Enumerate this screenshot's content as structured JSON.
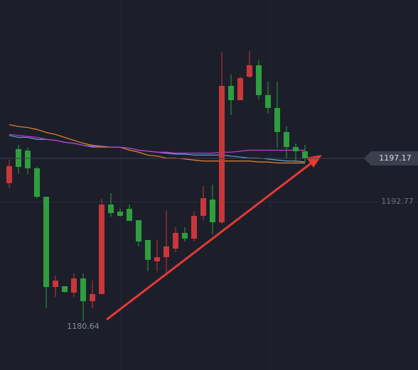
{
  "chart_data": {
    "type": "candlestick",
    "open": [
      1194.65,
      1198.11,
      1197.96,
      1196.16,
      1193.27,
      1184.11,
      1184.19,
      1183.54,
      1184.98,
      1182.67,
      1183.39,
      1192.48,
      1191.76,
      1192.05,
      1190.89,
      1188.88,
      1186.71,
      1187.14,
      1188.01,
      1189.6,
      1189.02,
      1191.33,
      1192.99,
      1190.68,
      1204.53,
      1203.08,
      1205.46,
      1206.62,
      1203.59,
      1202.29,
      1199.84,
      1198.32,
      1197.89
    ],
    "high": [
      1197.03,
      1198.54,
      1198.25,
      1196.3,
      1193.27,
      1185.27,
      1184.19,
      1185.49,
      1185.49,
      1184.76,
      1193.06,
      1193.64,
      1192.05,
      1192.48,
      1190.89,
      1188.88,
      1188.88,
      1191.9,
      1190.17,
      1190.17,
      1191.76,
      1194.36,
      1194.5,
      1207.99,
      1205.68,
      1205.46,
      1208.06,
      1207.12,
      1204.96,
      1204.96,
      1200.42,
      1198.68,
      1198.54
    ],
    "low": [
      1194.14,
      1195.58,
      1195.58,
      1193.13,
      1181.95,
      1183.1,
      1183.54,
      1183.1,
      1180.64,
      1181.95,
      1183.39,
      1191.26,
      1191.26,
      1190.82,
      1188.23,
      1185.7,
      1185.7,
      1185.27,
      1187.65,
      1188.73,
      1188.73,
      1190.89,
      1189.45,
      1190.53,
      1201.57,
      1203.08,
      1205.32,
      1203.16,
      1201.71,
      1198.25,
      1197.17,
      1196.81,
      1196.81
    ],
    "close": [
      1196.38,
      1196.3,
      1196.16,
      1193.27,
      1184.11,
      1184.76,
      1183.61,
      1184.98,
      1182.67,
      1183.39,
      1192.48,
      1191.62,
      1191.33,
      1190.82,
      1188.73,
      1186.86,
      1187.14,
      1188.23,
      1189.6,
      1189.02,
      1191.33,
      1193.13,
      1190.68,
      1204.53,
      1203.08,
      1205.32,
      1206.62,
      1203.59,
      1202.29,
      1199.84,
      1198.32,
      1197.89,
      1197.17
    ],
    "up_color": "#c9373a",
    "down_color": "#2f9e3f",
    "moving_averages": [
      {
        "color": "#e8872a",
        "values": [
          1200.6,
          1200.4,
          1200.3,
          1200.1,
          1199.8,
          1199.6,
          1199.3,
          1199.0,
          1198.7,
          1198.5,
          1198.4,
          1198.3,
          1198.3,
          1198.0,
          1197.8,
          1197.5,
          1197.4,
          1197.2,
          1197.2,
          1197.1,
          1197.0,
          1196.9,
          1196.9,
          1196.9,
          1196.9,
          1196.9,
          1196.9,
          1196.8,
          1196.8,
          1196.7,
          1196.7,
          1196.7,
          1196.7
        ]
      },
      {
        "color": "#5ba8e0",
        "values": [
          1199.5,
          1199.3,
          1199.3,
          1199.1,
          1199.1,
          1199.0,
          1198.8,
          1198.7,
          1198.5,
          1198.4,
          1198.3,
          1198.3,
          1198.3,
          1198.2,
          1198.0,
          1197.9,
          1197.8,
          1197.7,
          1197.6,
          1197.6,
          1197.5,
          1197.5,
          1197.5,
          1197.5,
          1197.4,
          1197.3,
          1197.2,
          1197.2,
          1197.1,
          1197.0,
          1196.9,
          1196.9,
          1196.8
        ]
      },
      {
        "color": "#c23ad6",
        "values": [
          1199.6,
          1199.5,
          1199.4,
          1199.3,
          1199.1,
          1199.0,
          1198.8,
          1198.7,
          1198.5,
          1198.3,
          1198.3,
          1198.3,
          1198.3,
          1198.2,
          1198.0,
          1197.9,
          1197.8,
          1197.8,
          1197.7,
          1197.7,
          1197.7,
          1197.7,
          1197.7,
          1197.8,
          1197.8,
          1197.9,
          1198.0,
          1198.0,
          1198.0,
          1198.0,
          1198.0,
          1198.0,
          1198.0
        ]
      }
    ],
    "ylim": [
      1175.68,
      1213.25
    ],
    "yticks": [
      1192.77
    ],
    "last_price": 1197.17,
    "low_label": 1180.64
  }
}
